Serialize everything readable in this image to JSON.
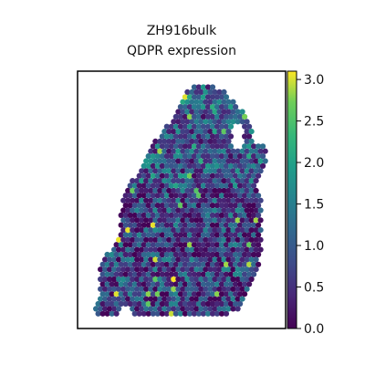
{
  "chart_data": {
    "type": "scatter",
    "title": "ZH916bulk",
    "subtitle": "QDPR expression",
    "xlabel": "",
    "ylabel": "",
    "colormap": "viridis",
    "colorbar": {
      "range": [
        0.0,
        3.1
      ],
      "ticks": [
        "0.0",
        "0.5",
        "1.0",
        "1.5",
        "2.0",
        "2.5",
        "3.0"
      ]
    },
    "tissue_outline": {
      "description_units": "normalized plot coordinates (0-1 within axes)",
      "polygon": [
        [
          0.52,
          0.92
        ],
        [
          0.58,
          0.95
        ],
        [
          0.7,
          0.93
        ],
        [
          0.78,
          0.86
        ],
        [
          0.83,
          0.8
        ],
        [
          0.85,
          0.72
        ],
        [
          0.92,
          0.7
        ],
        [
          0.9,
          0.62
        ],
        [
          0.86,
          0.58
        ],
        [
          0.88,
          0.5
        ],
        [
          0.88,
          0.4
        ],
        [
          0.88,
          0.3
        ],
        [
          0.86,
          0.2
        ],
        [
          0.8,
          0.12
        ],
        [
          0.78,
          0.06
        ],
        [
          0.55,
          0.05
        ],
        [
          0.3,
          0.05
        ],
        [
          0.08,
          0.05
        ],
        [
          0.1,
          0.12
        ],
        [
          0.1,
          0.25
        ],
        [
          0.2,
          0.35
        ],
        [
          0.2,
          0.45
        ],
        [
          0.24,
          0.55
        ],
        [
          0.3,
          0.62
        ],
        [
          0.34,
          0.68
        ],
        [
          0.38,
          0.74
        ],
        [
          0.44,
          0.8
        ],
        [
          0.48,
          0.86
        ]
      ],
      "holes": [
        [
          [
            0.74,
            0.78
          ],
          [
            0.8,
            0.8
          ],
          [
            0.8,
            0.7
          ],
          [
            0.74,
            0.7
          ]
        ],
        [
          [
            0.2,
            0.08
          ],
          [
            0.26,
            0.08
          ],
          [
            0.26,
            0.05
          ],
          [
            0.2,
            0.05
          ]
        ]
      ]
    },
    "expression_summary": {
      "typical_range": [
        0.0,
        1.5
      ],
      "bright_spots": [
        2.5,
        3.0
      ]
    }
  }
}
